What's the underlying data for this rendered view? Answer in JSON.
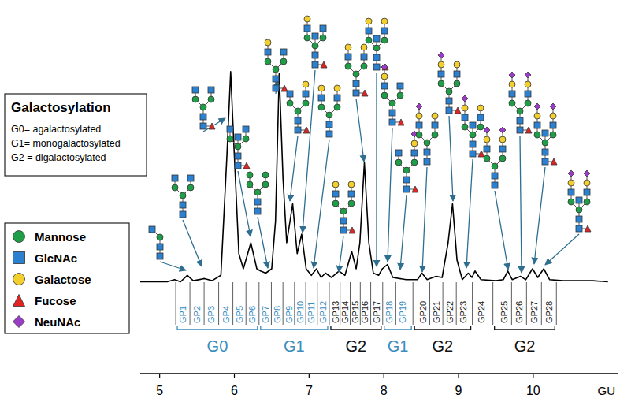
{
  "chart_data": {
    "type": "line",
    "x_label": "GU",
    "xlim": [
      4.74,
      11.14
    ],
    "xticks": [
      5,
      6,
      7,
      8,
      9,
      10
    ],
    "ylim": [
      0,
      100
    ],
    "tick_labels": "x",
    "series": [
      {
        "color": "#000000",
        "x": [
          4.74,
          5.1,
          5.2,
          5.28,
          5.37,
          5.45,
          5.6,
          5.7,
          5.82,
          5.9,
          5.95,
          6.0,
          6.06,
          6.12,
          6.22,
          6.3,
          6.35,
          6.42,
          6.5,
          6.55,
          6.6,
          6.65,
          6.7,
          6.78,
          6.84,
          6.9,
          6.96,
          7.03,
          7.1,
          7.16,
          7.22,
          7.3,
          7.4,
          7.48,
          7.57,
          7.63,
          7.68,
          7.74,
          7.8,
          7.86,
          7.93,
          7.98,
          8.05,
          8.12,
          8.3,
          8.45,
          8.51,
          8.58,
          8.7,
          8.78,
          8.86,
          8.92,
          8.98,
          9.05,
          9.13,
          9.18,
          9.22,
          9.3,
          9.5,
          9.6,
          9.66,
          9.72,
          9.83,
          9.9,
          9.99,
          10.06,
          10.14,
          10.22,
          10.4,
          10.8,
          11.0
        ],
        "values": [
          2,
          2,
          3,
          2,
          5,
          2.5,
          3.5,
          2.5,
          5,
          60,
          99,
          60,
          15,
          8,
          20,
          8,
          7,
          6,
          8,
          30,
          98,
          50,
          20,
          38,
          15,
          24,
          8,
          5,
          8,
          4,
          6,
          4,
          7,
          5,
          16,
          8,
          20,
          57,
          20,
          6,
          5,
          8,
          10,
          4,
          3,
          3,
          6,
          3,
          4.5,
          4,
          20,
          38,
          12,
          3,
          6,
          4,
          7,
          3,
          2.5,
          3,
          7,
          3,
          4.5,
          3,
          8,
          4,
          8,
          3,
          2.5,
          2.5,
          2
        ]
      }
    ],
    "peaks": {
      "labels": [
        "GP1",
        "GP2",
        "GP3",
        "GP4",
        "GP5",
        "GP6",
        "GP7",
        "GP8",
        "GP9",
        "GP10",
        "GP11",
        "GP12",
        "GP13",
        "GP14",
        "GP15",
        "GP16",
        "GP17",
        "GP18",
        "GP19",
        "GP20",
        "GP21",
        "GP22",
        "GP23",
        "GP24",
        "GP25",
        "GP26",
        "GP27",
        "GP28"
      ],
      "x": [
        5.31,
        5.5,
        5.69,
        5.89,
        6.07,
        6.24,
        6.42,
        6.57,
        6.73,
        6.88,
        7.03,
        7.19,
        7.35,
        7.48,
        7.62,
        7.75,
        7.9,
        8.07,
        8.25,
        8.53,
        8.7,
        8.88,
        9.06,
        9.31,
        9.61,
        9.81,
        10.01,
        10.21
      ],
      "colors": [
        "#3a8dbd",
        "#3a8dbd",
        "#3a8dbd",
        "#3a8dbd",
        "#3a8dbd",
        "#3a8dbd",
        "#3a8dbd",
        "#3a8dbd",
        "#3a8dbd",
        "#3a8dbd",
        "#3a8dbd",
        "#3a8dbd",
        "#222222",
        "#222222",
        "#222222",
        "#222222",
        "#222222",
        "#3a8dbd",
        "#3a8dbd",
        "#222222",
        "#222222",
        "#222222",
        "#222222",
        "#222222",
        "#222222",
        "#222222",
        "#222222",
        "#222222"
      ]
    },
    "groups": [
      {
        "label": "G0",
        "first": 0,
        "last": 5,
        "color": "#3a8dbd"
      },
      {
        "label": "G1",
        "first": 6,
        "last": 11,
        "color": "#3a8dbd"
      },
      {
        "label": "G2",
        "first": 12,
        "last": 16,
        "color": "#111111"
      },
      {
        "label": "G1",
        "first": 17,
        "last": 18,
        "color": "#3a8dbd"
      },
      {
        "label": "G2",
        "first": 19,
        "last": 22,
        "color": "#111111"
      },
      {
        "label": "G2",
        "first": 24,
        "last": 27,
        "color": "#111111"
      }
    ],
    "galactosylation_box": {
      "title": "Galactosylation",
      "lines": [
        "G0= agalactosylated",
        "G1= monogalactosylated",
        "G2 = digalactosylated"
      ]
    },
    "symbol_legend": [
      {
        "name": "Mannose",
        "color": "#1f9e48",
        "marker": "circle"
      },
      {
        "name": "GlcNAc",
        "color": "#2b80d0",
        "marker": "square"
      },
      {
        "name": "Galactose",
        "color": "#f2cf2e",
        "marker": "circle"
      },
      {
        "name": "Fucose",
        "color": "#e02424",
        "marker": "triangle"
      },
      {
        "name": "NeuNAc",
        "color": "#9a3cc8",
        "marker": "diamond"
      }
    ]
  }
}
